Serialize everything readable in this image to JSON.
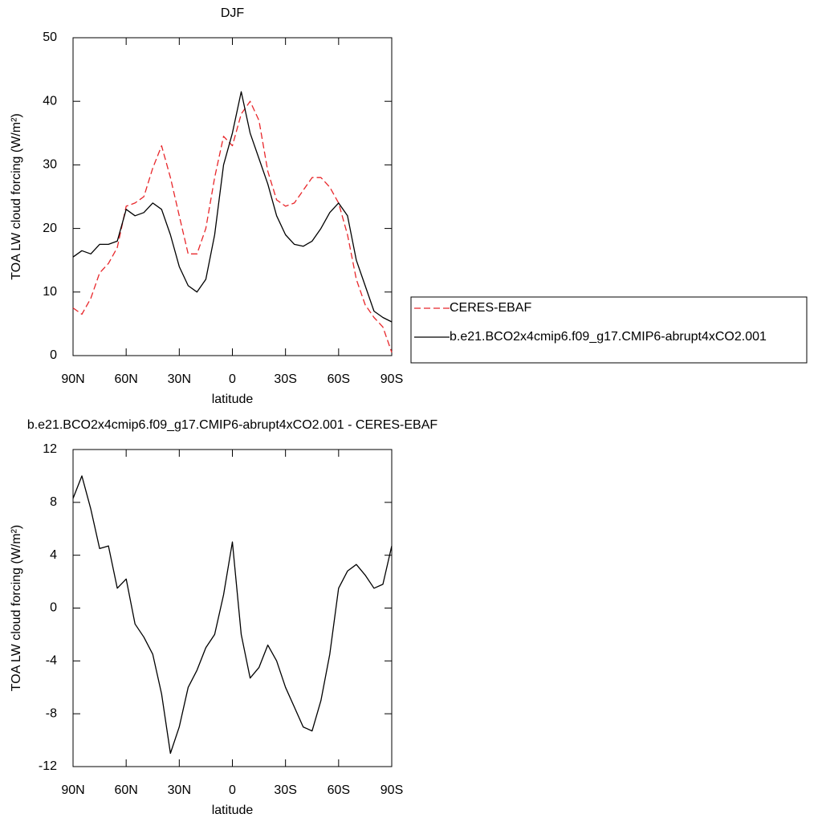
{
  "chart_data": [
    {
      "type": "line",
      "title": "DJF",
      "xlabel": "latitude",
      "ylabel": "TOA LW cloud forcing (W/m²)",
      "x": [
        90,
        85,
        80,
        75,
        70,
        65,
        60,
        55,
        50,
        45,
        40,
        35,
        30,
        25,
        20,
        15,
        10,
        5,
        0,
        -5,
        -10,
        -15,
        -20,
        -25,
        -30,
        -35,
        -40,
        -45,
        -50,
        -55,
        -60,
        -65,
        -70,
        -75,
        -80,
        -85,
        -90
      ],
      "xlim": [
        90,
        -90
      ],
      "xticks": [
        {
          "value": 90,
          "label": "90N"
        },
        {
          "value": 60,
          "label": "60N"
        },
        {
          "value": 30,
          "label": "30N"
        },
        0,
        {
          "value": -30,
          "label": "30S"
        },
        {
          "value": -60,
          "label": "60S"
        },
        {
          "value": -90,
          "label": "90S"
        }
      ],
      "ylim": [
        0,
        50
      ],
      "yticks": [
        0,
        10,
        20,
        30,
        40,
        50
      ],
      "series": [
        {
          "name": "CERES-EBAF",
          "color": "#e8262a",
          "dash": true,
          "values": [
            7.5,
            6.5,
            9,
            13,
            14.5,
            17,
            23.5,
            24,
            25,
            29.5,
            33,
            28,
            22,
            16,
            16,
            20,
            28,
            34.5,
            33,
            38,
            40,
            37,
            29,
            24.5,
            23.5,
            24,
            26,
            28,
            28,
            26.5,
            24,
            19,
            12,
            8,
            6,
            4.5,
            0.5
          ]
        },
        {
          "name": "b.e21.BCO2x4cmip6.f09_g17.CMIP6-abrupt4xCO2.001",
          "color": "#000000",
          "dash": false,
          "values": [
            15.5,
            16.5,
            16,
            17.5,
            17.5,
            18,
            23,
            22,
            22.5,
            24,
            23,
            19,
            14,
            11,
            10,
            12,
            19,
            30,
            35,
            41.5,
            35,
            31,
            27,
            22,
            19,
            17.5,
            17.2,
            18,
            20,
            22.5,
            24,
            22,
            15,
            11,
            7,
            6,
            5.3
          ]
        }
      ]
    },
    {
      "type": "line",
      "title": "b.e21.BCO2x4cmip6.f09_g17.CMIP6-abrupt4xCO2.001 - CERES-EBAF",
      "xlabel": "latitude",
      "ylabel": "TOA LW cloud forcing (W/m²)",
      "x": [
        90,
        85,
        80,
        75,
        70,
        65,
        60,
        55,
        50,
        45,
        40,
        35,
        30,
        25,
        20,
        15,
        10,
        5,
        0,
        -5,
        -10,
        -15,
        -20,
        -25,
        -30,
        -35,
        -40,
        -45,
        -50,
        -55,
        -60,
        -65,
        -70,
        -75,
        -80,
        -85,
        -90
      ],
      "xlim": [
        90,
        -90
      ],
      "xticks": [
        {
          "value": 90,
          "label": "90N"
        },
        {
          "value": 60,
          "label": "60N"
        },
        {
          "value": 30,
          "label": "30N"
        },
        0,
        {
          "value": -30,
          "label": "30S"
        },
        {
          "value": -60,
          "label": "60S"
        },
        {
          "value": -90,
          "label": "90S"
        }
      ],
      "ylim": [
        -12,
        12
      ],
      "yticks": [
        -12,
        -8,
        -4,
        0,
        4,
        8,
        12
      ],
      "series": [
        {
          "color": "#000000",
          "dash": false,
          "values": [
            8.3,
            10,
            7.5,
            4.5,
            4.7,
            1.5,
            2.2,
            -1.2,
            -2.2,
            -3.5,
            -6.5,
            -11,
            -9,
            -6,
            -4.7,
            -3,
            -2,
            1,
            5,
            -2,
            -5.3,
            -4.5,
            -2.8,
            -4,
            -6,
            -7.5,
            -9,
            -9.3,
            -7,
            -3.5,
            1.5,
            2.8,
            3.3,
            2.5,
            1.5,
            1.8,
            4.7
          ]
        }
      ]
    }
  ]
}
